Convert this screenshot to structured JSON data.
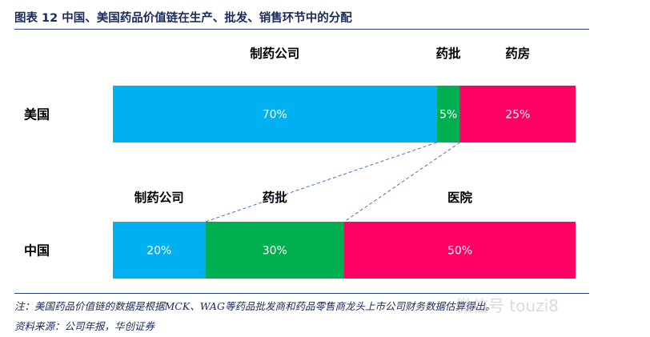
{
  "figure": {
    "title": "图表  12    中国、美国药品价值链在生产、批发、销售环节中的分配",
    "note": "注：美国药品价值链的数据是根据MCK、WAG等药品批发商和药品零售商龙头上市公司财务数据估算得出。",
    "source": "资料来源：公司年报，华创证券",
    "watermark": "微信号 touzi8"
  },
  "chart_data": {
    "type": "bar",
    "orientation": "horizontal",
    "stacked": true,
    "normalized": true,
    "rows": [
      {
        "label": "美国",
        "segments": [
          {
            "name": "制药公司",
            "value": 70,
            "display": "70%",
            "color": "#00b0f0"
          },
          {
            "name": "药批",
            "value": 5,
            "display": "5%",
            "color": "#00b050"
          },
          {
            "name": "药房",
            "value": 25,
            "display": "25%",
            "color": "#ff0066"
          }
        ]
      },
      {
        "label": "中国",
        "segments": [
          {
            "name": "制药公司",
            "value": 20,
            "display": "20%",
            "color": "#00b0f0"
          },
          {
            "name": "药批",
            "value": 30,
            "display": "30%",
            "color": "#00b050"
          },
          {
            "name": "医院",
            "value": 50,
            "display": "50%",
            "color": "#ff0066"
          }
        ]
      }
    ],
    "connector": {
      "from_row": 0,
      "to_row": 1,
      "segment_index": 1,
      "style": "dashed",
      "color": "#4472c4"
    }
  }
}
